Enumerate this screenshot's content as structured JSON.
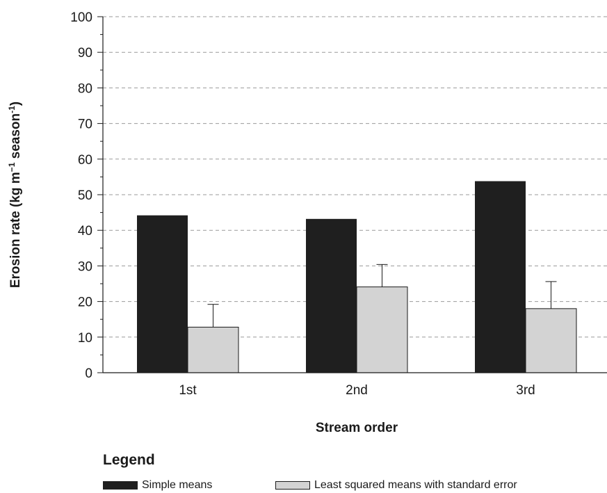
{
  "chart_data": {
    "type": "bar",
    "ylabel_main": "Erosion rate (kg m",
    "ylabel_sup1": "−1",
    "ylabel_mid": " season",
    "ylabel_sup2": "-1",
    "ylabel_end": ")",
    "xlabel": "Stream order",
    "categories": [
      "1st",
      "2nd",
      "3rd"
    ],
    "ylim": [
      0,
      100
    ],
    "yticks": [
      0,
      10,
      20,
      30,
      40,
      50,
      60,
      70,
      80,
      90,
      100
    ],
    "grid": true,
    "series": [
      {
        "name": "Simple means",
        "values": [
          44.2,
          43.2,
          53.8
        ],
        "color": "#1f1f1f"
      },
      {
        "name": "Least squared means with standard error",
        "values": [
          12.8,
          24.1,
          18.0
        ],
        "error": [
          6.4,
          6.3,
          7.6
        ],
        "color": "#d3d3d3"
      }
    ]
  },
  "legend": {
    "title": "Legend",
    "items": [
      "Simple means",
      "Least squared means with standard error"
    ]
  }
}
